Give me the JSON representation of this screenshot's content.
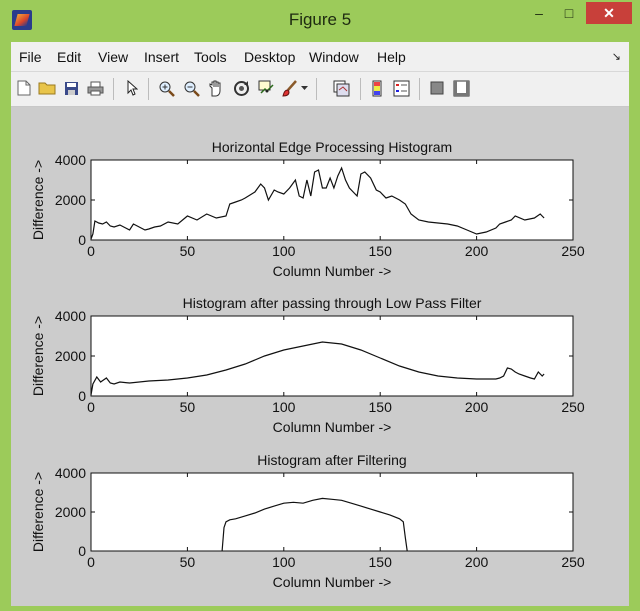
{
  "window": {
    "title": "Figure 5"
  },
  "titlebar_buttons": {
    "min": "–",
    "max": "□",
    "close": "✕"
  },
  "menu": [
    "File",
    "Edit",
    "View",
    "Insert",
    "Tools",
    "Desktop",
    "Window",
    "Help"
  ],
  "toolbar_icons": [
    "new-figure-icon",
    "open-file-icon",
    "save-icon",
    "print-icon",
    "edit-plot-icon",
    "zoom-in-icon",
    "zoom-out-icon",
    "pan-icon",
    "rotate-3d-icon",
    "data-cursor-icon",
    "brush-icon",
    "brush-dropdown-icon",
    "link-plot-icon",
    "insert-colorbar-icon",
    "insert-legend-icon",
    "hide-plot-tools-icon",
    "show-plot-tools-icon"
  ],
  "chart_data": [
    {
      "type": "line",
      "title": "Horizontal Edge Processing Histogram",
      "xlabel": "Column Number ->",
      "ylabel": "Difference ->",
      "xlim": [
        0,
        250
      ],
      "ylim": [
        0,
        4000
      ],
      "xticks": [
        0,
        50,
        100,
        150,
        200,
        250
      ],
      "yticks": [
        0,
        2000,
        4000
      ],
      "series": [
        {
          "x": [
            0,
            1,
            2,
            4,
            6,
            8,
            10,
            12,
            15,
            18,
            20,
            22,
            24,
            26,
            28,
            30,
            33,
            36,
            40,
            45,
            50,
            55,
            60,
            65,
            70,
            72,
            75,
            78,
            80,
            85,
            88,
            90,
            92,
            95,
            97,
            100,
            103,
            106,
            108,
            110,
            112,
            114,
            116,
            118,
            120,
            122,
            124,
            126,
            128,
            130,
            132,
            134,
            136,
            138,
            140,
            142,
            145,
            148,
            150,
            153,
            156,
            160,
            163,
            166,
            170,
            175,
            180,
            185,
            190,
            195,
            200,
            205,
            210,
            212,
            215,
            218,
            220,
            225,
            230,
            233,
            235
          ],
          "values": [
            50,
            300,
            950,
            850,
            800,
            900,
            700,
            650,
            750,
            600,
            500,
            800,
            700,
            600,
            500,
            550,
            650,
            700,
            900,
            800,
            1200,
            1000,
            1300,
            1100,
            1200,
            1800,
            1900,
            2000,
            2100,
            2400,
            2800,
            2600,
            2000,
            2500,
            2400,
            2300,
            2600,
            3000,
            2200,
            2100,
            3000,
            2200,
            3400,
            3500,
            2600,
            2600,
            3100,
            2600,
            3200,
            3600,
            3000,
            2600,
            2400,
            2200,
            3300,
            3400,
            3100,
            2500,
            2400,
            2100,
            2200,
            2000,
            1800,
            1300,
            1000,
            900,
            850,
            800,
            700,
            500,
            300,
            400,
            600,
            800,
            900,
            1000,
            1200,
            1000,
            1100,
            1300,
            1100
          ]
        }
      ]
    },
    {
      "type": "line",
      "title": "Histogram after passing through Low Pass Filter",
      "xlabel": "Column Number ->",
      "ylabel": "Difference ->",
      "xlim": [
        0,
        250
      ],
      "ylim": [
        0,
        4000
      ],
      "xticks": [
        0,
        50,
        100,
        150,
        200,
        250
      ],
      "yticks": [
        0,
        2000,
        4000
      ],
      "series": [
        {
          "x": [
            0,
            1,
            3,
            5,
            8,
            10,
            12,
            15,
            20,
            30,
            40,
            50,
            60,
            70,
            80,
            90,
            100,
            110,
            120,
            125,
            130,
            140,
            150,
            160,
            170,
            180,
            190,
            200,
            210,
            212,
            214,
            216,
            218,
            220,
            222,
            225,
            228,
            230,
            232,
            234,
            235
          ],
          "values": [
            50,
            600,
            950,
            700,
            900,
            650,
            600,
            700,
            650,
            750,
            800,
            900,
            1050,
            1300,
            1600,
            2000,
            2300,
            2500,
            2700,
            2650,
            2600,
            2300,
            1900,
            1500,
            1200,
            1000,
            900,
            850,
            850,
            900,
            1000,
            1400,
            1350,
            1200,
            1100,
            1000,
            900,
            850,
            1200,
            1000,
            1100
          ]
        }
      ]
    },
    {
      "type": "line",
      "title": "Histogram after Filtering",
      "xlabel": "Column Number ->",
      "ylabel": "Difference ->",
      "xlim": [
        0,
        250
      ],
      "ylim": [
        0,
        4000
      ],
      "xticks": [
        0,
        50,
        100,
        150,
        200,
        250
      ],
      "yticks": [
        0,
        2000,
        4000
      ],
      "series": [
        {
          "x": [
            68,
            69,
            70,
            72,
            75,
            80,
            85,
            90,
            95,
            100,
            105,
            110,
            115,
            120,
            125,
            130,
            135,
            140,
            145,
            150,
            155,
            160,
            162,
            163,
            164
          ],
          "values": [
            0,
            1200,
            1500,
            1600,
            1650,
            1800,
            1950,
            2150,
            2300,
            2450,
            2500,
            2450,
            2600,
            2700,
            2650,
            2600,
            2450,
            2300,
            2150,
            2000,
            1850,
            1650,
            1500,
            700,
            0
          ]
        }
      ]
    }
  ]
}
